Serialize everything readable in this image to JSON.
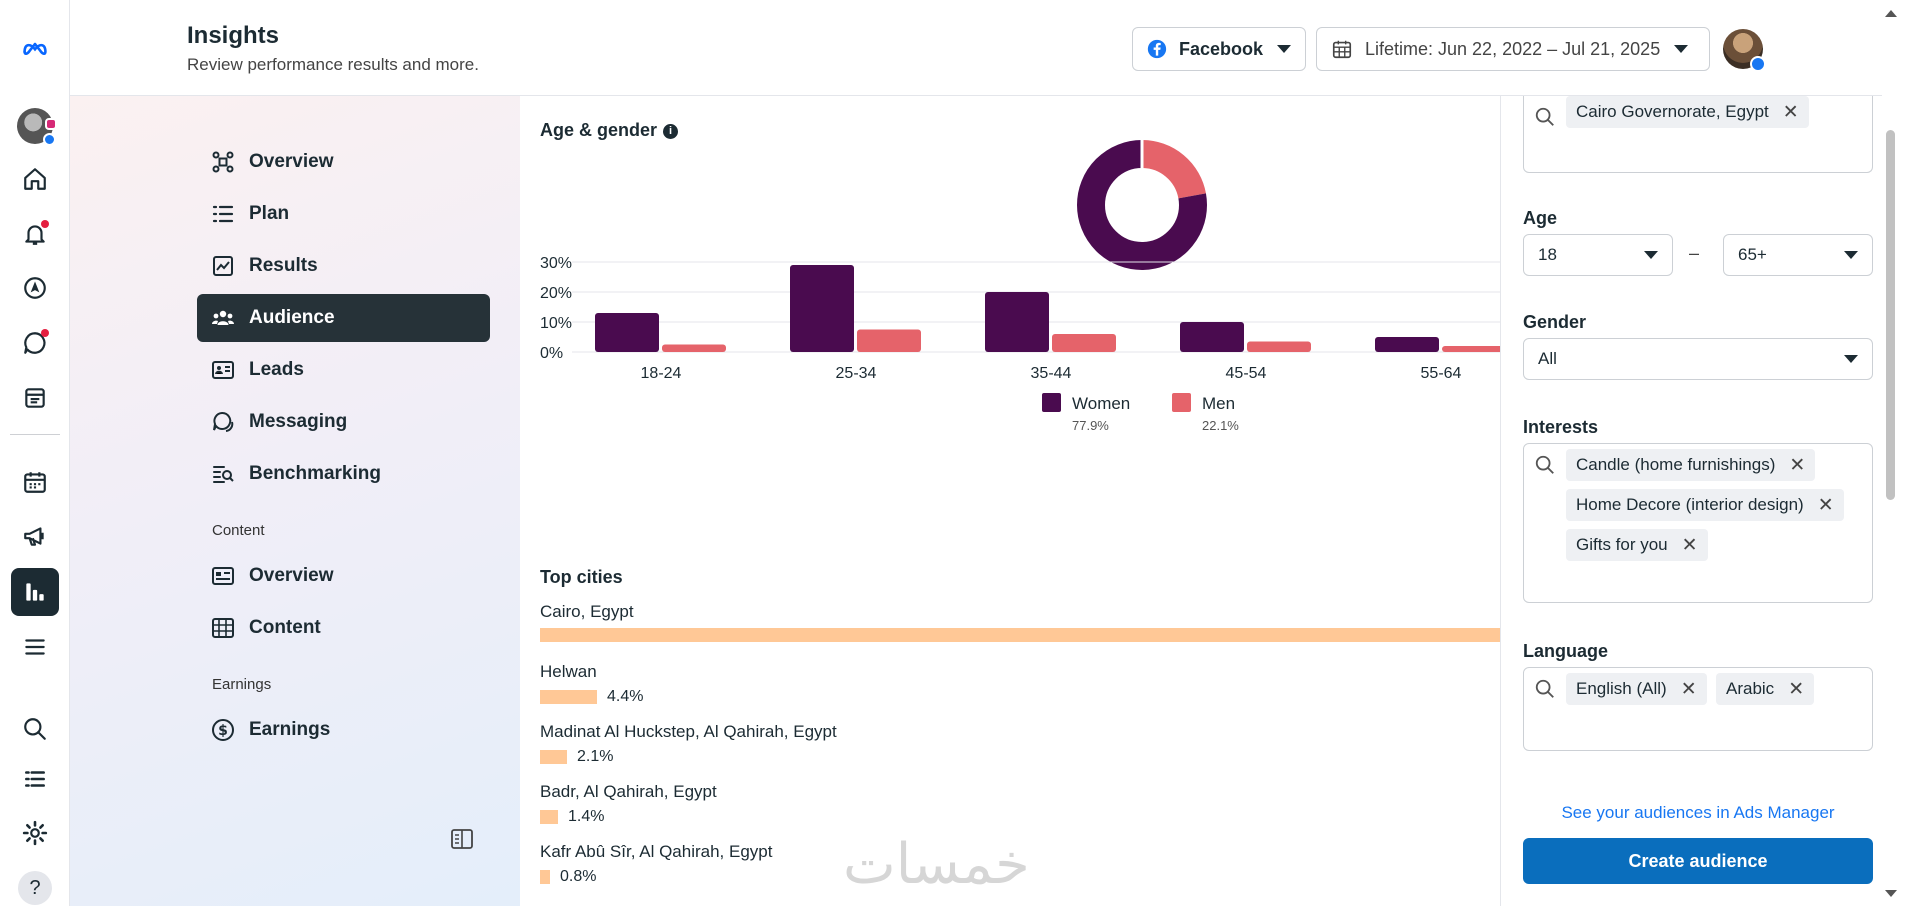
{
  "header": {
    "title": "Insights",
    "subtitle": "Review performance results and more.",
    "platform": "Facebook",
    "date_range": "Lifetime: Jun 22, 2022 – Jul 21, 2025"
  },
  "nav": {
    "items": [
      {
        "label": "Overview",
        "icon": "overview-icon"
      },
      {
        "label": "Plan",
        "icon": "plan-icon"
      },
      {
        "label": "Results",
        "icon": "results-icon"
      },
      {
        "label": "Audience",
        "icon": "audience-icon",
        "active": true
      },
      {
        "label": "Leads",
        "icon": "leads-icon"
      },
      {
        "label": "Messaging",
        "icon": "messaging-icon"
      },
      {
        "label": "Benchmarking",
        "icon": "benchmarking-icon"
      }
    ],
    "content_section": "Content",
    "content_items": [
      {
        "label": "Overview",
        "icon": "content-overview-icon"
      },
      {
        "label": "Content",
        "icon": "content-table-icon"
      }
    ],
    "earnings_section": "Earnings",
    "earnings_items": [
      {
        "label": "Earnings",
        "icon": "dollar-icon"
      }
    ]
  },
  "main": {
    "age_gender_title": "Age & gender",
    "top_cities_title": "Top cities",
    "cities": [
      {
        "name": "Cairo, Egypt",
        "pct": "",
        "share": 1.0
      },
      {
        "name": "Helwan",
        "pct": "4.4%",
        "share": 0.044
      },
      {
        "name": "Madinat Al Huckstep, Al Qahirah, Egypt",
        "pct": "2.1%",
        "share": 0.021
      },
      {
        "name": "Badr, Al Qahirah, Egypt",
        "pct": "1.4%",
        "share": 0.014
      },
      {
        "name": "Kafr Abû Sîr, Al Qahirah, Egypt",
        "pct": "0.8%",
        "share": 0.008
      }
    ]
  },
  "chart_data": {
    "type": "bar",
    "title": "Age & gender",
    "categories": [
      "18-24",
      "25-34",
      "35-44",
      "45-54",
      "55-64"
    ],
    "series": [
      {
        "name": "Women",
        "share": "77.9%",
        "color": "#4a0b4f",
        "values": [
          13,
          29,
          20,
          10,
          5
        ]
      },
      {
        "name": "Men",
        "share": "22.1%",
        "color": "#e5636a",
        "values": [
          2.5,
          7.5,
          6,
          3.5,
          2
        ]
      }
    ],
    "ylim": [
      0,
      30
    ],
    "yticks": [
      "0%",
      "10%",
      "20%",
      "30%"
    ],
    "donut": {
      "women": 77.9,
      "men": 22.1
    },
    "legend_position": "bottom"
  },
  "filters": {
    "location_chip": "Cairo Governorate, Egypt",
    "age_label": "Age",
    "age_min": "18",
    "age_sep": "–",
    "age_max": "65+",
    "gender_label": "Gender",
    "gender_value": "All",
    "interests_label": "Interests",
    "interests": [
      "Candle (home furnishings)",
      "Home Decore (interior design)",
      "Gifts for you"
    ],
    "language_label": "Language",
    "languages": [
      "English (All)",
      "Arabic"
    ],
    "ads_link": "See your audiences in Ads Manager",
    "create_button": "Create audience"
  },
  "watermark": "خمسات",
  "colors": {
    "accent": "#1877f2",
    "women": "#4a0b4f",
    "men": "#e5636a",
    "city_bar": "#ffc896"
  }
}
